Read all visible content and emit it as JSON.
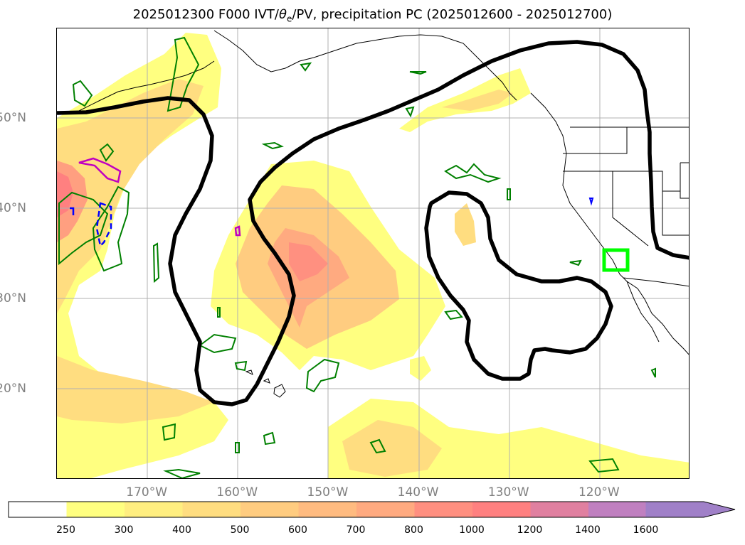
{
  "title": {
    "run": "2025012300 F000 IVT/",
    "theta": "θ",
    "sub": "e",
    "rest": "/PV, precipitation PC (2025012600 - 2025012700)"
  },
  "map": {
    "lon_range": [
      -180,
      -110
    ],
    "lat_range": [
      10,
      60
    ],
    "lat_ticks": [
      {
        "value": 50,
        "label": "50°N"
      },
      {
        "value": 40,
        "label": "40°N"
      },
      {
        "value": 30,
        "label": "30°N"
      },
      {
        "value": 20,
        "label": "20°N"
      }
    ],
    "lon_ticks": [
      {
        "value": -170,
        "label": "170°W"
      },
      {
        "value": -160,
        "label": "160°W"
      },
      {
        "value": -150,
        "label": "150°W"
      },
      {
        "value": -140,
        "label": "140°W"
      },
      {
        "value": -130,
        "label": "130°W"
      },
      {
        "value": -120,
        "label": "120°W"
      }
    ],
    "colors": {
      "ivt_fill": "#ffff80",
      "theta_e": "#000000",
      "pv_contour": "#008000",
      "pv_high": "#c000c0",
      "dashed": "#0000ff",
      "target_box": "#00ff00",
      "coast": "#000000",
      "grid": "#b0b0b0"
    }
  },
  "colorbar": {
    "levels": [
      "250",
      "300",
      "400",
      "500",
      "600",
      "700",
      "800",
      "1000",
      "1200",
      "1400",
      "1600"
    ],
    "colors": [
      "#ffffff",
      "#ffff80",
      "#ffee80",
      "#ffdd80",
      "#ffcc80",
      "#ffbb80",
      "#ffaa80",
      "#ff8f80",
      "#ff8080",
      "#e080a0",
      "#c080c0",
      "#a080c8"
    ]
  }
}
